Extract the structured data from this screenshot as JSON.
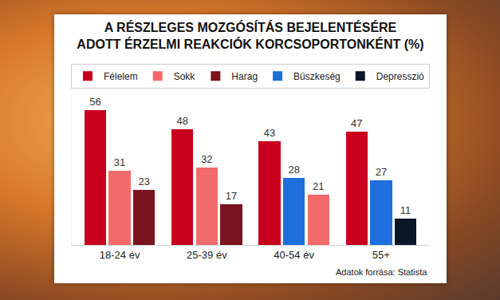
{
  "chart_data": {
    "type": "bar",
    "title": "A RÉSZLEGES MOZGÓSÍTÁS BEJELENTÉSÉRE\nADOTT ÉRZELMI REAKCIÓK KORCSOPORTONKÉNT (%)",
    "source": "Adatok forrása: Statista",
    "categories": [
      "18-24 év",
      "25-39 év",
      "40-54 év",
      "55+"
    ],
    "series": [
      {
        "name": "Félelem",
        "color": "#c8001e",
        "values": [
          56,
          48,
          43,
          47
        ]
      },
      {
        "name": "Sokk",
        "color": "#f26b6b",
        "values": [
          31,
          32,
          21,
          null
        ]
      },
      {
        "name": "Harag",
        "color": "#7a1420",
        "values": [
          23,
          17,
          null,
          null
        ]
      },
      {
        "name": "Büszkeség",
        "color": "#1e6fdc",
        "values": [
          null,
          null,
          28,
          27
        ]
      },
      {
        "name": "Depresszió",
        "color": "#0b1628",
        "values": [
          null,
          null,
          null,
          11
        ]
      }
    ],
    "ylim": [
      0,
      62
    ],
    "grid": false,
    "legend": "top",
    "data_labels": true,
    "tick_labels": "x"
  }
}
